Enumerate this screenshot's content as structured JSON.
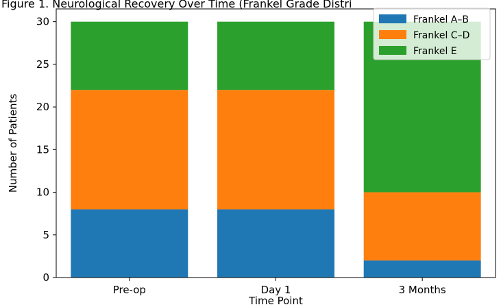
{
  "chart_data": {
    "type": "bar",
    "stacked": true,
    "title": "Figure 1. Neurological Recovery Over Time (Frankel Grade Distri",
    "xlabel": "Time Point",
    "ylabel": "Number of Patients",
    "categories": [
      "Pre-op",
      "Day 1",
      "3 Months"
    ],
    "series": [
      {
        "name": "Frankel A–B",
        "values": [
          8,
          8,
          2
        ],
        "color": "#1f77b4"
      },
      {
        "name": "Frankel C–D",
        "values": [
          14,
          14,
          8
        ],
        "color": "#ff7f0e"
      },
      {
        "name": "Frankel E",
        "values": [
          8,
          8,
          20
        ],
        "color": "#2ca02c"
      }
    ],
    "ylim": [
      0,
      31.5
    ],
    "yticks": [
      0,
      5,
      10,
      15,
      20,
      25,
      30
    ],
    "grid": false,
    "legend_position": "top-right"
  }
}
